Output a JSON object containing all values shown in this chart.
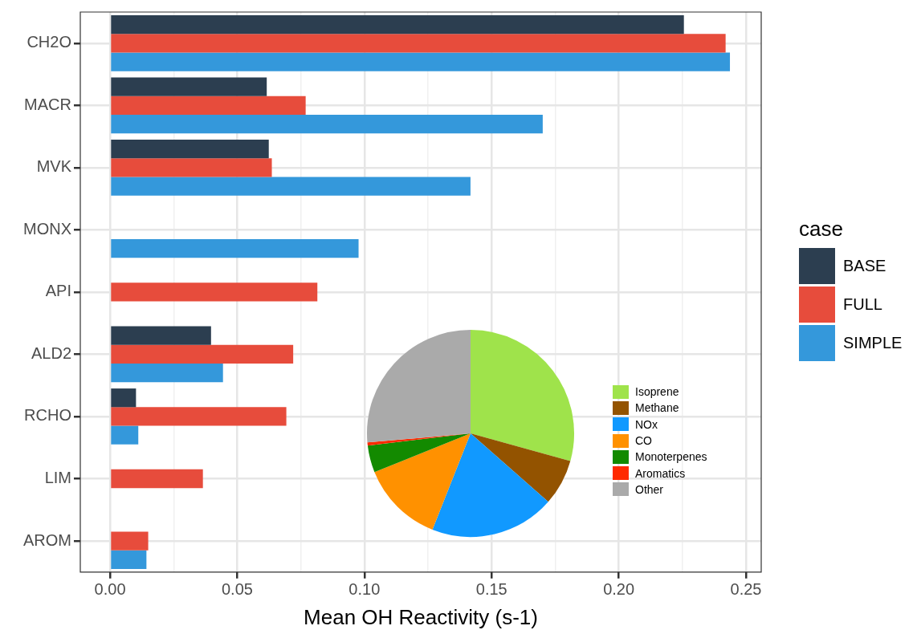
{
  "chart_data": [
    {
      "type": "bar",
      "orientation": "horizontal",
      "xlabel": "Mean OH Reactivity (s-1)",
      "legend_title": "case",
      "legend": "right",
      "grid": true,
      "categories": [
        "CH2O",
        "MACR",
        "MVK",
        "MONX",
        "API",
        "ALD2",
        "RCHO",
        "LIM",
        "AROM"
      ],
      "series": [
        {
          "name": "BASE",
          "color": "#2c3e50",
          "values": [
            0.2256,
            0.0616,
            0.0624,
            null,
            null,
            0.0397,
            0.0102,
            null,
            null
          ]
        },
        {
          "name": "FULL",
          "color": "#e74c3c",
          "values": [
            0.242,
            0.0769,
            0.0636,
            null,
            0.0815,
            0.072,
            0.0693,
            0.0365,
            0.015
          ]
        },
        {
          "name": "SIMPLE",
          "color": "#3498db",
          "values": [
            0.2437,
            0.1701,
            0.1417,
            0.0977,
            null,
            0.0444,
            0.0111,
            null,
            0.0143
          ]
        }
      ],
      "xlim": [
        -0.0117,
        0.256
      ],
      "xticks": [
        {
          "value": 0,
          "label": "0.00"
        },
        {
          "value": 0.025,
          "label": null
        },
        {
          "value": 0.05,
          "label": "0.05"
        },
        {
          "value": 0.075,
          "label": null
        },
        {
          "value": 0.1,
          "label": "0.10"
        },
        {
          "value": 0.125,
          "label": null
        },
        {
          "value": 0.15,
          "label": "0.15"
        },
        {
          "value": 0.175,
          "label": null
        },
        {
          "value": 0.2,
          "label": "0.20"
        },
        {
          "value": 0.225,
          "label": null
        },
        {
          "value": 0.25,
          "label": "0.25"
        }
      ]
    },
    {
      "type": "pie",
      "legend": "right",
      "categories": [
        "Isoprene",
        "Methane",
        "NOx",
        "CO",
        "Monoterpenes",
        "Aromatics",
        "Other"
      ],
      "values": [
        29.3,
        7.2,
        19.5,
        12.9,
        4.2,
        0.5,
        26.4
      ],
      "colors": [
        "#9fe34b",
        "#935300",
        "#1199ff",
        "#ff9100",
        "#138a00",
        "#ff2a00",
        "#aaaaaa"
      ]
    }
  ]
}
